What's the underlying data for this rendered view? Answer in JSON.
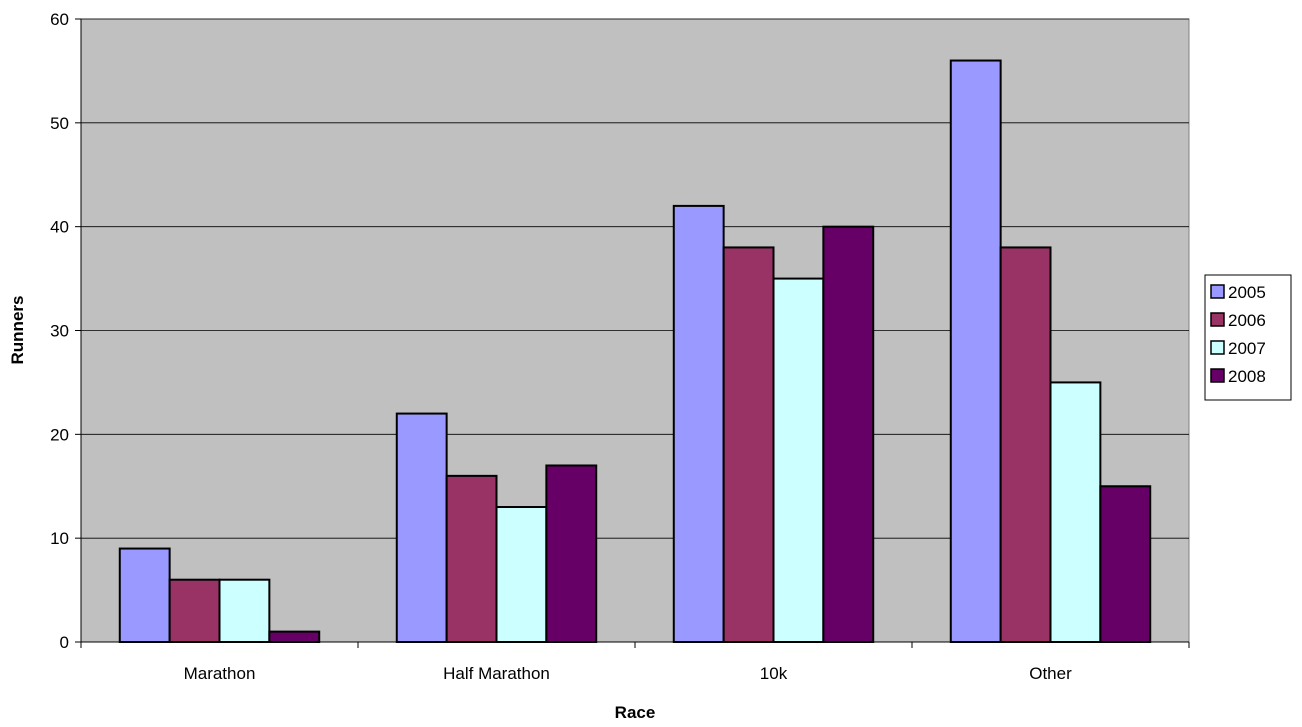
{
  "chart_data": {
    "type": "bar",
    "title": "",
    "xlabel": "Race",
    "ylabel": "Runners",
    "categories": [
      "Marathon",
      "Half Marathon",
      "10k",
      "Other"
    ],
    "ylim": [
      0,
      60
    ],
    "yticks": [
      0,
      10,
      20,
      30,
      40,
      50,
      60
    ],
    "grid": true,
    "plot_background": "#c0c0c0",
    "legend_position": "right",
    "series": [
      {
        "name": "2005",
        "color": "#9999ff",
        "values": [
          9,
          22,
          42,
          56
        ]
      },
      {
        "name": "2006",
        "color": "#993366",
        "values": [
          6,
          16,
          38,
          38
        ]
      },
      {
        "name": "2007",
        "color": "#ccffff",
        "values": [
          6,
          13,
          35,
          25
        ]
      },
      {
        "name": "2008",
        "color": "#660066",
        "values": [
          1,
          17,
          40,
          15
        ]
      }
    ]
  }
}
